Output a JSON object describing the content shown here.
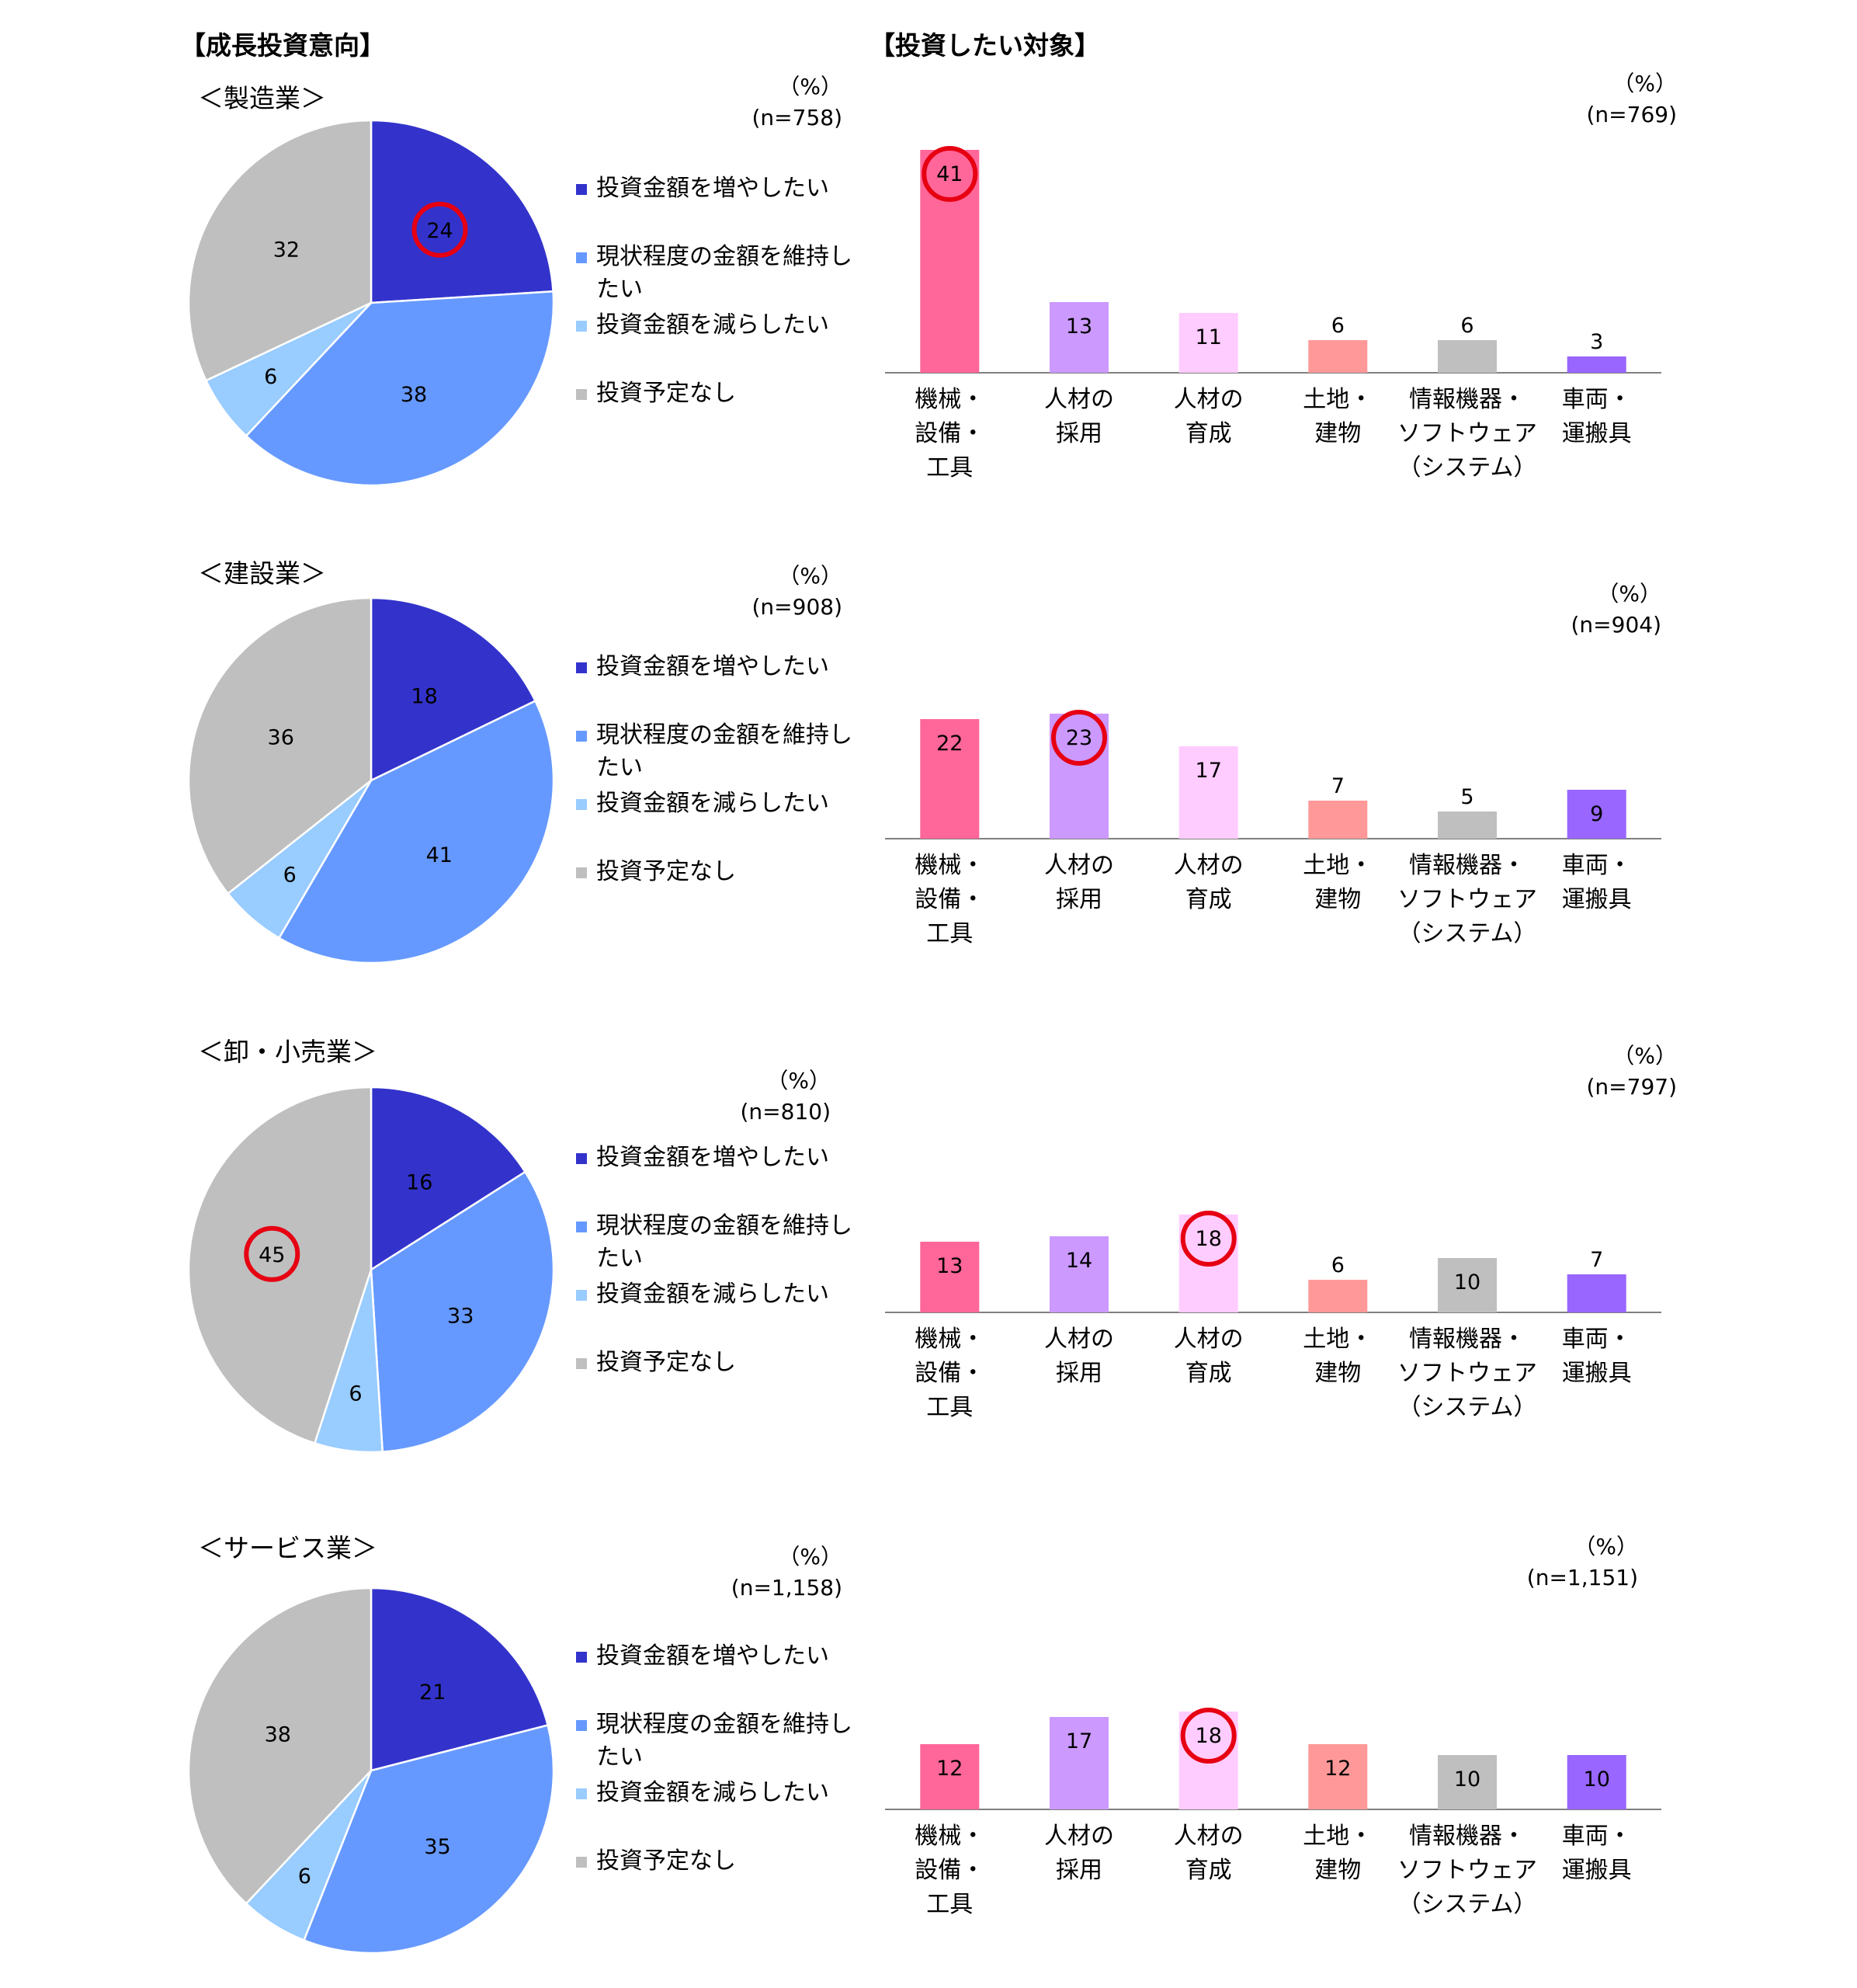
{
  "headings": {
    "left": "【成長投資意向】",
    "right": "【投資したい対象】"
  },
  "legend": {
    "items": [
      {
        "label": "投資金額を増やしたい",
        "color": "#3333cc"
      },
      {
        "label": "現状程度の金額を維持したい",
        "color": "#6699ff"
      },
      {
        "label": "投資金額を減らしたい",
        "color": "#99ccff"
      },
      {
        "label": "投資予定なし",
        "color": "#bfbfbf"
      }
    ]
  },
  "bar_categories": [
    [
      "機械・",
      "設備・",
      "工具"
    ],
    [
      "人材の",
      "採用"
    ],
    [
      "人材の",
      "育成"
    ],
    [
      "土地・",
      "建物"
    ],
    [
      "情報機器・",
      "ソフトウェア",
      "（システム）"
    ],
    [
      "車両・",
      "運搬具"
    ]
  ],
  "bar_colors": [
    "#ff6699",
    "#cc99ff",
    "#ffccff",
    "#ff9999",
    "#bfbfbf",
    "#9966ff"
  ],
  "sections": [
    {
      "sector": "＜製造業＞",
      "pie_unit": "（%）",
      "pie_n": "(n=758)",
      "bar_unit": "（%）",
      "bar_n": "(n=769)"
    },
    {
      "sector": "＜建設業＞",
      "pie_unit": "（%）",
      "pie_n": "(n=908)",
      "bar_unit": "（%）",
      "bar_n": "(n=904)"
    },
    {
      "sector": "＜卸・小売業＞",
      "pie_unit": "（%）",
      "pie_n": "(n=810)",
      "bar_unit": "（%）",
      "bar_n": "(n=797)"
    },
    {
      "sector": "＜サービス業＞",
      "pie_unit": "（%）",
      "pie_n": "(n=1,158)",
      "bar_unit": "（%）",
      "bar_n": "(n=1,151)"
    }
  ],
  "chart_data": [
    {
      "type": "pie",
      "title": "＜製造業＞",
      "unit": "%",
      "n": "758",
      "labels": [
        "投資金額を増やしたい",
        "現状程度の金額を維持したい",
        "投資金額を減らしたい",
        "投資予定なし"
      ],
      "values": [
        24,
        38,
        6,
        32
      ],
      "highlighted": [
        0
      ]
    },
    {
      "type": "bar",
      "title": "＜製造業＞",
      "unit": "%",
      "n": "769",
      "categories": [
        "機械・設備・工具",
        "人材の採用",
        "人材の育成",
        "土地・建物",
        "情報機器・ソフトウェア（システム）",
        "車両・運搬具"
      ],
      "values": [
        41,
        13,
        11,
        6,
        6,
        3
      ],
      "highlighted": [
        0
      ]
    },
    {
      "type": "pie",
      "title": "＜建設業＞",
      "unit": "%",
      "n": "908",
      "labels": [
        "投資金額を増やしたい",
        "現状程度の金額を維持したい",
        "投資金額を減らしたい",
        "投資予定なし"
      ],
      "values": [
        18,
        41,
        6,
        36
      ],
      "highlighted": []
    },
    {
      "type": "bar",
      "title": "＜建設業＞",
      "unit": "%",
      "n": "904",
      "categories": [
        "機械・設備・工具",
        "人材の採用",
        "人材の育成",
        "土地・建物",
        "情報機器・ソフトウェア（システム）",
        "車両・運搬具"
      ],
      "values": [
        22,
        23,
        17,
        7,
        5,
        9
      ],
      "highlighted": [
        1
      ]
    },
    {
      "type": "pie",
      "title": "＜卸・小売業＞",
      "unit": "%",
      "n": "810",
      "labels": [
        "投資金額を増やしたい",
        "現状程度の金額を維持したい",
        "投資金額を減らしたい",
        "投資予定なし"
      ],
      "values": [
        16,
        33,
        6,
        45
      ],
      "highlighted": [
        3
      ]
    },
    {
      "type": "bar",
      "title": "＜卸・小売業＞",
      "unit": "%",
      "n": "797",
      "categories": [
        "機械・設備・工具",
        "人材の採用",
        "人材の育成",
        "土地・建物",
        "情報機器・ソフトウェア（システム）",
        "車両・運搬具"
      ],
      "values": [
        13,
        14,
        18,
        6,
        10,
        7
      ],
      "highlighted": [
        2
      ]
    },
    {
      "type": "pie",
      "title": "＜サービス業＞",
      "unit": "%",
      "n": "1,158",
      "labels": [
        "投資金額を増やしたい",
        "現状程度の金額を維持したい",
        "投資金額を減らしたい",
        "投資予定なし"
      ],
      "values": [
        21,
        35,
        6,
        38
      ],
      "highlighted": []
    },
    {
      "type": "bar",
      "title": "＜サービス業＞",
      "unit": "%",
      "n": "1,151",
      "categories": [
        "機械・設備・工具",
        "人材の採用",
        "人材の育成",
        "土地・建物",
        "情報機器・ソフトウェア（システム）",
        "車両・運搬具"
      ],
      "values": [
        12,
        17,
        18,
        12,
        10,
        10
      ],
      "highlighted": [
        2
      ]
    }
  ]
}
